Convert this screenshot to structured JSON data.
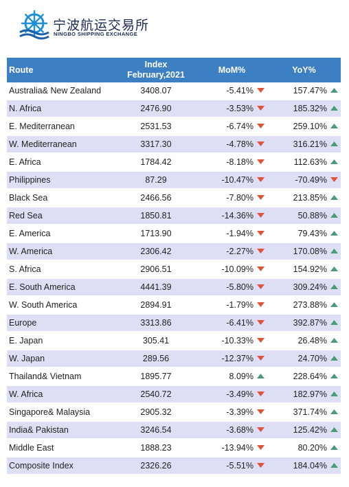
{
  "logo": {
    "name_cn": "宁波航运交易所",
    "name_en": "NINGBO SHIPPING EXCHANGE"
  },
  "colors": {
    "header_bg": "#3d7fc3",
    "row_alt_bg": "#dde0f4",
    "arrow_up": "#4c9a7a",
    "arrow_down": "#e1523a"
  },
  "table": {
    "headers": {
      "route": "Route",
      "index_line1": "Index",
      "index_line2": "February,2021",
      "mom": "MoM%",
      "yoy": "YoY%"
    },
    "rows": [
      {
        "route": "Australia& New Zealand",
        "index": "3408.07",
        "mom": "-5.41%",
        "mom_dir": "down",
        "yoy": "157.47%",
        "yoy_dir": "up"
      },
      {
        "route": "N. Africa",
        "index": "2476.90",
        "mom": "-3.53%",
        "mom_dir": "down",
        "yoy": "185.32%",
        "yoy_dir": "up"
      },
      {
        "route": "E. Mediterranean",
        "index": "2531.53",
        "mom": "-6.74%",
        "mom_dir": "down",
        "yoy": "259.10%",
        "yoy_dir": "up"
      },
      {
        "route": "W. Mediterranean",
        "index": "3317.30",
        "mom": "-4.78%",
        "mom_dir": "down",
        "yoy": "316.21%",
        "yoy_dir": "up"
      },
      {
        "route": "E. Africa",
        "index": "1784.42",
        "mom": "-8.18%",
        "mom_dir": "down",
        "yoy": "112.63%",
        "yoy_dir": "up"
      },
      {
        "route": "Philippines",
        "index": "87.29",
        "mom": "-10.47%",
        "mom_dir": "down",
        "yoy": "-70.49%",
        "yoy_dir": "down"
      },
      {
        "route": "Black Sea",
        "index": "2466.56",
        "mom": "-7.80%",
        "mom_dir": "down",
        "yoy": "213.85%",
        "yoy_dir": "up"
      },
      {
        "route": "Red Sea",
        "index": "1850.81",
        "mom": "-14.36%",
        "mom_dir": "down",
        "yoy": "50.88%",
        "yoy_dir": "up"
      },
      {
        "route": "E. America",
        "index": "1713.90",
        "mom": "-1.94%",
        "mom_dir": "down",
        "yoy": "79.43%",
        "yoy_dir": "up"
      },
      {
        "route": "W. America",
        "index": "2306.42",
        "mom": "-2.27%",
        "mom_dir": "down",
        "yoy": "170.08%",
        "yoy_dir": "up"
      },
      {
        "route": "S. Africa",
        "index": "2906.51",
        "mom": "-10.09%",
        "mom_dir": "down",
        "yoy": "154.92%",
        "yoy_dir": "up"
      },
      {
        "route": "E. South America",
        "index": "4441.39",
        "mom": "-5.80%",
        "mom_dir": "down",
        "yoy": "309.24%",
        "yoy_dir": "up"
      },
      {
        "route": "W. South America",
        "index": "2894.91",
        "mom": "-1.79%",
        "mom_dir": "down",
        "yoy": "273.88%",
        "yoy_dir": "up"
      },
      {
        "route": "Europe",
        "index": "3313.86",
        "mom": "-6.41%",
        "mom_dir": "down",
        "yoy": "392.87%",
        "yoy_dir": "up"
      },
      {
        "route": "E. Japan",
        "index": "305.41",
        "mom": "-10.33%",
        "mom_dir": "down",
        "yoy": "26.48%",
        "yoy_dir": "up"
      },
      {
        "route": "W. Japan",
        "index": "289.56",
        "mom": "-12.37%",
        "mom_dir": "down",
        "yoy": "24.70%",
        "yoy_dir": "up"
      },
      {
        "route": "Thailand& Vietnam",
        "index": "1895.77",
        "mom": "8.09%",
        "mom_dir": "up",
        "yoy": "228.64%",
        "yoy_dir": "up"
      },
      {
        "route": "W. Africa",
        "index": "2540.72",
        "mom": "-3.49%",
        "mom_dir": "down",
        "yoy": "182.97%",
        "yoy_dir": "up"
      },
      {
        "route": "Singapore& Malaysia",
        "index": "2905.32",
        "mom": "-3.39%",
        "mom_dir": "down",
        "yoy": "371.74%",
        "yoy_dir": "up"
      },
      {
        "route": "India& Pakistan",
        "index": "3246.54",
        "mom": "-3.68%",
        "mom_dir": "down",
        "yoy": "125.42%",
        "yoy_dir": "up"
      },
      {
        "route": "Middle East",
        "index": "1888.23",
        "mom": "-13.94%",
        "mom_dir": "down",
        "yoy": "80.20%",
        "yoy_dir": "up"
      },
      {
        "route": "Composite Index",
        "index": "2326.26",
        "mom": "-5.51%",
        "mom_dir": "down",
        "yoy": "184.04%",
        "yoy_dir": "up"
      }
    ]
  }
}
